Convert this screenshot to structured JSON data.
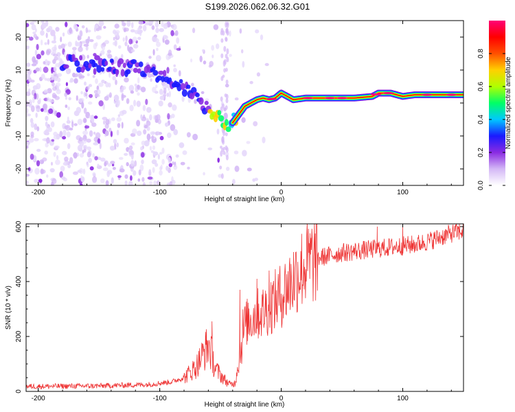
{
  "figure_title": "S199.2026.062.06.32.G01",
  "chart_data": [
    {
      "type": "heatmap",
      "title": "S199.2026.062.06.32.G01",
      "xlabel": "Height of straight line (km)",
      "ylabel": "Frequency (Hz)",
      "xlim": [
        -210,
        150
      ],
      "ylim": [
        -25,
        25
      ],
      "xticks": [
        -200,
        -100,
        0,
        100
      ],
      "yticks": [
        20,
        10,
        0,
        -10,
        -20
      ],
      "xtick_labels": [
        "-200",
        "-100",
        "0",
        "100"
      ],
      "ytick_labels": [
        "20",
        "10",
        "0",
        "-10",
        "-20"
      ],
      "ridge": {
        "x": [
          -210,
          -180,
          -150,
          -130,
          -110,
          -95,
          -85,
          -75,
          -65,
          -55,
          -48,
          -42,
          -38,
          -34,
          -30,
          -25,
          -20,
          -15,
          -10,
          -5,
          0,
          5,
          10,
          20,
          40,
          60,
          75,
          80,
          90,
          100,
          110,
          130,
          150
        ],
        "y": [
          12,
          12,
          12,
          11,
          10,
          8,
          6,
          3,
          0,
          -3,
          -5,
          -7,
          -5,
          -3,
          -1,
          0,
          1,
          1.5,
          1,
          1.5,
          3,
          2,
          1,
          1.5,
          1.5,
          1.5,
          2,
          3,
          3,
          2,
          2.5,
          2.5,
          2.5
        ]
      },
      "colorbar": {
        "label": "Normalized spectral amplitude",
        "range": [
          0,
          1
        ],
        "ticks": [
          0.0,
          0.2,
          0.4,
          0.6,
          0.8
        ],
        "tick_labels": [
          "0.0",
          "0.2",
          "0.4",
          "0.6",
          "0.8"
        ],
        "colors": [
          "#ffffff",
          "#d4b8f6",
          "#8a2be2",
          "#1a1aff",
          "#00c8ff",
          "#00ff66",
          "#b0ff00",
          "#ffd000",
          "#ff5000",
          "#ff0000",
          "#ff0077"
        ]
      }
    },
    {
      "type": "line",
      "title": "",
      "xlabel": "Height of straight line (km)",
      "ylabel": "SNR (10 * v/v)",
      "xlim": [
        -210,
        150
      ],
      "ylim": [
        0,
        610
      ],
      "xticks": [
        -200,
        -100,
        0,
        100
      ],
      "yticks": [
        0,
        200,
        400,
        600
      ],
      "xtick_labels": [
        "-200",
        "-100",
        "0",
        "100"
      ],
      "ytick_labels": [
        "0",
        "200",
        "400",
        "600"
      ],
      "series": [
        {
          "name": "SNR",
          "color": "#ee3333",
          "trend": {
            "x": [
              -210,
              -150,
              -110,
              -90,
              -80,
              -70,
              -65,
              -60,
              -57,
              -55,
              -52,
              -48,
              -45,
              -42,
              -38,
              -35,
              -32,
              -30,
              -27,
              -24,
              -20,
              -15,
              -10,
              -5,
              0,
              5,
              10,
              15,
              20,
              25,
              30,
              40,
              50,
              60,
              70,
              80,
              90,
              100,
              110,
              120,
              130,
              140,
              150
            ],
            "y": [
              18,
              20,
              25,
              35,
              50,
              90,
              130,
              170,
              130,
              90,
              70,
              50,
              35,
              25,
              30,
              120,
              200,
              240,
              260,
              270,
              280,
              290,
              310,
              330,
              350,
              380,
              410,
              440,
              460,
              475,
              485,
              495,
              505,
              510,
              515,
              520,
              525,
              530,
              535,
              545,
              560,
              575,
              585
            ]
          },
          "spikes": {
            "x": [
              -57,
              79,
              100,
              -34,
              -20,
              -10
            ],
            "y": [
              255,
              600,
              605,
              370,
              410,
              440
            ]
          }
        }
      ]
    }
  ]
}
